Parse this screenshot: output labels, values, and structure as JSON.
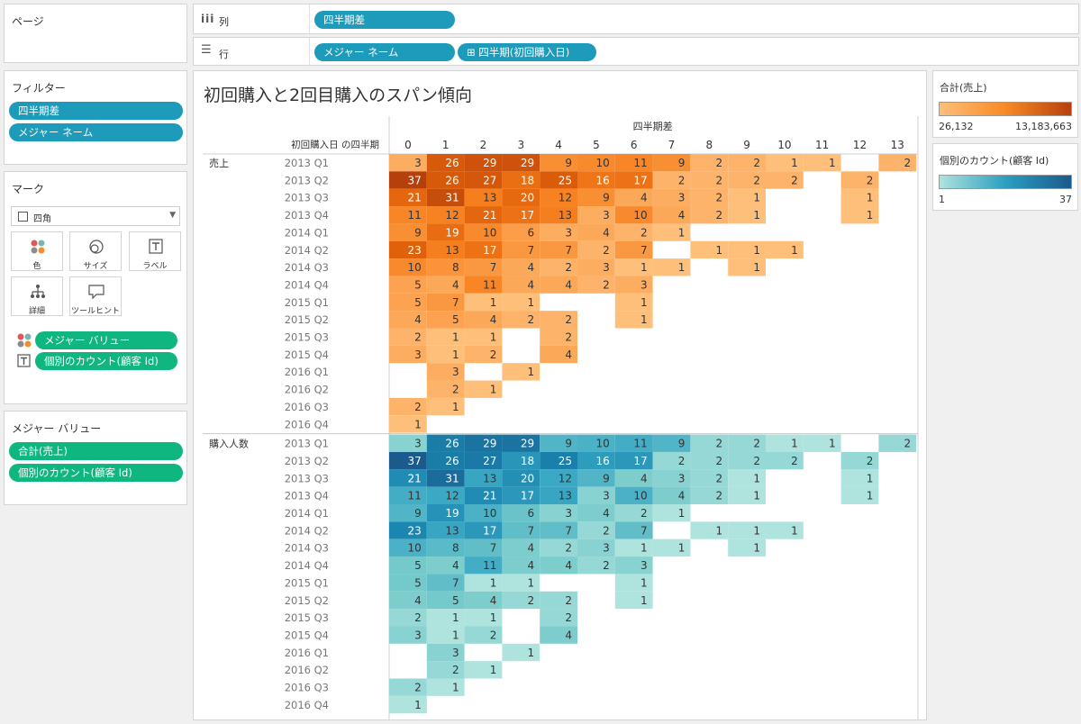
{
  "pages_panel": {
    "title": "ページ"
  },
  "shelves": {
    "columns": {
      "label": "列",
      "pills": [
        "四半期差"
      ]
    },
    "rows": {
      "label": "行",
      "pills": [
        "メジャー ネーム",
        "⊞ 四半期(初回購入日)"
      ]
    }
  },
  "filters_panel": {
    "title": "フィルター",
    "pills": [
      "四半期差",
      "メジャー ネーム"
    ]
  },
  "marks_panel": {
    "title": "マーク",
    "mark_type": "四角",
    "buttons": {
      "color": "色",
      "size": "サイズ",
      "label": "ラベル",
      "detail": "詳細",
      "tooltip": "ツールヒント"
    },
    "pills": [
      "メジャー バリュー",
      "個別のカウント(顧客 Id)"
    ]
  },
  "measure_values_panel": {
    "title": "メジャー バリュー",
    "pills": [
      "合計(売上)",
      "個別のカウント(顧客 Id)"
    ]
  },
  "legend_sales": {
    "title": "合計(売上)",
    "min": "26,132",
    "max": "13,183,663",
    "color_low": "#fdbf7a",
    "color_high": "#b6400c"
  },
  "legend_count": {
    "title": "個別のカウント(顧客 Id)",
    "min": "1",
    "max": "37",
    "color_low": "#aee3de",
    "color_high": "#1b5a8c"
  },
  "chart_data": {
    "type": "heatmap",
    "title": "初回購入と2回目購入のスパン傾向",
    "column_field": "四半期差",
    "row_field": "初回購入日 の四半期",
    "x": [
      0,
      1,
      2,
      3,
      4,
      5,
      6,
      7,
      8,
      9,
      10,
      11,
      12,
      13
    ],
    "rows": [
      "2013 Q1",
      "2013 Q2",
      "2013 Q3",
      "2013 Q4",
      "2014 Q1",
      "2014 Q2",
      "2014 Q3",
      "2014 Q4",
      "2015 Q1",
      "2015 Q2",
      "2015 Q3",
      "2015 Q4",
      "2016 Q1",
      "2016 Q2",
      "2016 Q3",
      "2016 Q4"
    ],
    "panes": [
      {
        "name": "売上",
        "values": [
          [
            3,
            26,
            29,
            29,
            9,
            10,
            11,
            9,
            2,
            2,
            1,
            1,
            null,
            2
          ],
          [
            37,
            26,
            27,
            18,
            25,
            16,
            17,
            2,
            2,
            2,
            2,
            null,
            2,
            null
          ],
          [
            21,
            31,
            13,
            20,
            12,
            9,
            4,
            3,
            2,
            1,
            null,
            null,
            1,
            null
          ],
          [
            11,
            12,
            21,
            17,
            13,
            3,
            10,
            4,
            2,
            1,
            null,
            null,
            1,
            null
          ],
          [
            9,
            19,
            10,
            6,
            3,
            4,
            2,
            1,
            null,
            null,
            null,
            null,
            null,
            null
          ],
          [
            23,
            13,
            17,
            7,
            7,
            2,
            7,
            null,
            1,
            1,
            1,
            null,
            null,
            null
          ],
          [
            10,
            8,
            7,
            4,
            2,
            3,
            1,
            1,
            null,
            1,
            null,
            null,
            null,
            null
          ],
          [
            5,
            4,
            11,
            4,
            4,
            2,
            3,
            null,
            null,
            null,
            null,
            null,
            null,
            null
          ],
          [
            5,
            7,
            1,
            1,
            null,
            null,
            1,
            null,
            null,
            null,
            null,
            null,
            null,
            null
          ],
          [
            4,
            5,
            4,
            2,
            2,
            null,
            1,
            null,
            null,
            null,
            null,
            null,
            null,
            null
          ],
          [
            2,
            1,
            1,
            null,
            2,
            null,
            null,
            null,
            null,
            null,
            null,
            null,
            null,
            null
          ],
          [
            3,
            1,
            2,
            null,
            4,
            null,
            null,
            null,
            null,
            null,
            null,
            null,
            null,
            null
          ],
          [
            null,
            3,
            null,
            1,
            null,
            null,
            null,
            null,
            null,
            null,
            null,
            null,
            null,
            null
          ],
          [
            null,
            2,
            1,
            null,
            null,
            null,
            null,
            null,
            null,
            null,
            null,
            null,
            null,
            null
          ],
          [
            2,
            1,
            null,
            null,
            null,
            null,
            null,
            null,
            null,
            null,
            null,
            null,
            null,
            null
          ],
          [
            1,
            null,
            null,
            null,
            null,
            null,
            null,
            null,
            null,
            null,
            null,
            null,
            null,
            null
          ]
        ]
      },
      {
        "name": "購入人数",
        "values": [
          [
            3,
            26,
            29,
            29,
            9,
            10,
            11,
            9,
            2,
            2,
            1,
            1,
            null,
            2
          ],
          [
            37,
            26,
            27,
            18,
            25,
            16,
            17,
            2,
            2,
            2,
            2,
            null,
            2,
            null
          ],
          [
            21,
            31,
            13,
            20,
            12,
            9,
            4,
            3,
            2,
            1,
            null,
            null,
            1,
            null
          ],
          [
            11,
            12,
            21,
            17,
            13,
            3,
            10,
            4,
            2,
            1,
            null,
            null,
            1,
            null
          ],
          [
            9,
            19,
            10,
            6,
            3,
            4,
            2,
            1,
            null,
            null,
            null,
            null,
            null,
            null
          ],
          [
            23,
            13,
            17,
            7,
            7,
            2,
            7,
            null,
            1,
            1,
            1,
            null,
            null,
            null
          ],
          [
            10,
            8,
            7,
            4,
            2,
            3,
            1,
            1,
            null,
            1,
            null,
            null,
            null,
            null
          ],
          [
            5,
            4,
            11,
            4,
            4,
            2,
            3,
            null,
            null,
            null,
            null,
            null,
            null,
            null
          ],
          [
            5,
            7,
            1,
            1,
            null,
            null,
            1,
            null,
            null,
            null,
            null,
            null,
            null,
            null
          ],
          [
            4,
            5,
            4,
            2,
            2,
            null,
            1,
            null,
            null,
            null,
            null,
            null,
            null,
            null
          ],
          [
            2,
            1,
            1,
            null,
            2,
            null,
            null,
            null,
            null,
            null,
            null,
            null,
            null,
            null
          ],
          [
            3,
            1,
            2,
            null,
            4,
            null,
            null,
            null,
            null,
            null,
            null,
            null,
            null,
            null
          ],
          [
            null,
            3,
            null,
            1,
            null,
            null,
            null,
            null,
            null,
            null,
            null,
            null,
            null,
            null
          ],
          [
            null,
            2,
            1,
            null,
            null,
            null,
            null,
            null,
            null,
            null,
            null,
            null,
            null,
            null
          ],
          [
            2,
            1,
            null,
            null,
            null,
            null,
            null,
            null,
            null,
            null,
            null,
            null,
            null,
            null
          ],
          [
            1,
            null,
            null,
            null,
            null,
            null,
            null,
            null,
            null,
            null,
            null,
            null,
            null,
            null
          ]
        ]
      }
    ]
  }
}
